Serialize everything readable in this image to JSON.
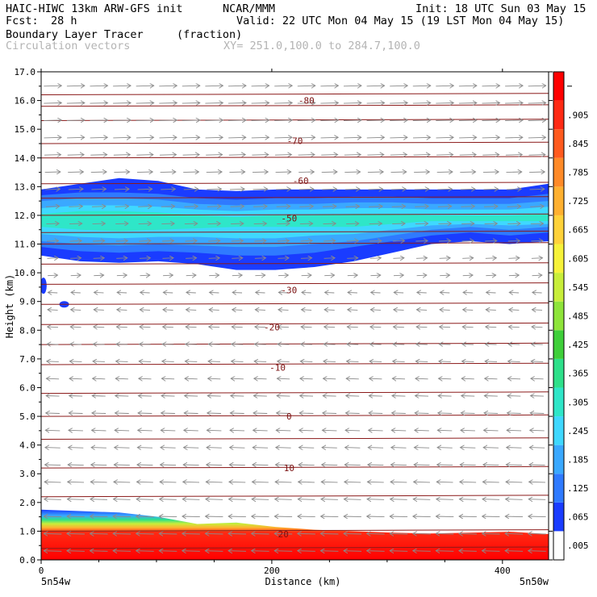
{
  "header": {
    "model": "HAIC-HIWC 13km ARW-GFS init",
    "org": "NCAR/MMM",
    "init": "Init: 18 UTC Sun 03 May 15",
    "fcst_label": "Fcst:",
    "fcst_value": "28 h",
    "valid": "Valid: 22 UTC Mon 04 May 15 (19 LST Mon 04 May 15)",
    "field_name": "Boundary Layer Tracer",
    "field_units": "(fraction)",
    "overlay": "Circulation vectors",
    "xsec": "XY= 251.0,100.0 to 284.7,100.0"
  },
  "chart_data": {
    "type": "heatmap",
    "xlabel": "Distance (km)",
    "ylabel": "Height (km)",
    "xlim": [
      0,
      440
    ],
    "ylim": [
      0,
      17
    ],
    "xticks": [
      "0",
      "200",
      "400"
    ],
    "yticks": [
      "0.0",
      "1.0",
      "2.0",
      "3.0",
      "4.0",
      "5.0",
      "6.0",
      "7.0",
      "8.0",
      "9.0",
      "10.0",
      "11.0",
      "12.0",
      "13.0",
      "14.0",
      "15.0",
      "16.0",
      "17.0"
    ],
    "left_endpoint": "5n54w",
    "right_endpoint": "5n50w",
    "colorbar_labels": [
      ".005",
      ".065",
      ".125",
      ".185",
      ".245",
      ".305",
      ".365",
      ".425",
      ".485",
      ".545",
      ".605",
      ".665",
      ".725",
      ".785",
      ".845",
      ".905"
    ],
    "colorbar_colors": [
      "#ffffff",
      "#1a3cff",
      "#2f7aff",
      "#3aa8ff",
      "#3fd8ff",
      "#2fe6c8",
      "#2ee08a",
      "#3fcf3a",
      "#8ee43a",
      "#c8ee3a",
      "#f6f23a",
      "#ffd23a",
      "#ffb030",
      "#ff8a28",
      "#ff5a1e",
      "#ff2a14",
      "#ff0000"
    ],
    "contour_labels": [
      {
        "text": "-80",
        "x": 230,
        "y": 16.0
      },
      {
        "text": "-70",
        "x": 220,
        "y": 14.6
      },
      {
        "text": "-60",
        "x": 225,
        "y": 13.2
      },
      {
        "text": "-50",
        "x": 215,
        "y": 11.9
      },
      {
        "text": "-30",
        "x": 215,
        "y": 9.4
      },
      {
        "text": "-20",
        "x": 200,
        "y": 8.1
      },
      {
        "text": "-10",
        "x": 205,
        "y": 6.7
      },
      {
        "text": "0",
        "x": 215,
        "y": 5.0
      },
      {
        "text": "10",
        "x": 215,
        "y": 3.2
      },
      {
        "text": "20",
        "x": 210,
        "y": 0.9
      }
    ],
    "isotherm_heights_km": [
      0.4,
      1.0,
      2.2,
      3.2,
      4.2,
      5.0,
      5.8,
      6.8,
      7.5,
      8.2,
      8.9,
      9.6,
      10.3,
      11.0,
      11.4,
      12.0,
      12.6,
      13.1,
      14.0,
      14.5,
      15.3,
      15.8,
      16.2
    ],
    "tracer_layers": [
      {
        "level": 0.5,
        "color": "#1a3cff",
        "bottom": [
          10.6,
          10.1
        ],
        "top": [
          13.1,
          12.9
        ],
        "bottom_profile": [
          10.6,
          10.4,
          10.35,
          10.4,
          10.3,
          10.1,
          10.1,
          10.2,
          10.4,
          10.7,
          11.0,
          11.1,
          11.0,
          11.1
        ],
        "top_profile": [
          12.9,
          13.1,
          13.3,
          13.2,
          12.9,
          12.85,
          12.9,
          12.9,
          12.9,
          12.9,
          12.9,
          12.9,
          12.9,
          13.1
        ]
      },
      {
        "level": 0.4,
        "color": "#2f7aff",
        "bottom_profile": [
          10.9,
          10.75,
          10.7,
          10.75,
          10.7,
          10.6,
          10.6,
          10.7,
          10.9,
          11.1,
          11.3,
          11.4,
          11.3,
          11.4
        ],
        "top_profile": [
          12.7,
          12.8,
          12.8,
          12.75,
          12.6,
          12.55,
          12.6,
          12.6,
          12.65,
          12.65,
          12.6,
          12.6,
          12.6,
          12.75
        ]
      },
      {
        "level": 0.3,
        "color": "#3aa8ff",
        "bottom_profile": [
          11.1,
          11.0,
          10.95,
          11.0,
          10.95,
          10.9,
          10.9,
          11.0,
          11.1,
          11.3,
          11.5,
          11.6,
          11.5,
          11.6
        ],
        "top_profile": [
          12.5,
          12.6,
          12.6,
          12.55,
          12.4,
          12.35,
          12.4,
          12.4,
          12.45,
          12.45,
          12.4,
          12.4,
          12.4,
          12.5
        ]
      },
      {
        "level": 0.2,
        "color": "#3fd8ff",
        "bottom_profile": [
          11.35,
          11.25,
          11.2,
          11.25,
          11.25,
          11.2,
          11.2,
          11.3,
          11.35,
          11.5,
          11.65,
          11.7,
          11.65,
          11.7
        ],
        "top_profile": [
          12.25,
          12.35,
          12.35,
          12.3,
          12.2,
          12.15,
          12.2,
          12.2,
          12.25,
          12.25,
          12.2,
          12.2,
          12.2,
          12.3
        ]
      },
      {
        "level": 0.1,
        "color": "#2fe6c8",
        "bottom_profile": [
          11.6,
          11.5,
          11.45,
          11.5,
          11.55,
          11.6,
          11.6,
          11.6,
          11.6,
          11.7,
          11.8,
          11.8,
          11.8,
          11.8
        ],
        "top_profile": [
          12.05,
          12.15,
          12.15,
          12.1,
          12.0,
          11.95,
          12.0,
          12.0,
          12.05,
          12.05,
          12.0,
          12.0,
          12.0,
          12.05
        ]
      }
    ],
    "boundary_layer_top_km": [
      1.75,
      1.7,
      1.65,
      1.5,
      1.25,
      1.3,
      1.15,
      1.05,
      1.0,
      0.95,
      0.92,
      0.95,
      0.98,
      0.9
    ],
    "flow": {
      "upper_direction": "east",
      "lower_direction": "west",
      "reversal_height_km": 9.5
    }
  }
}
